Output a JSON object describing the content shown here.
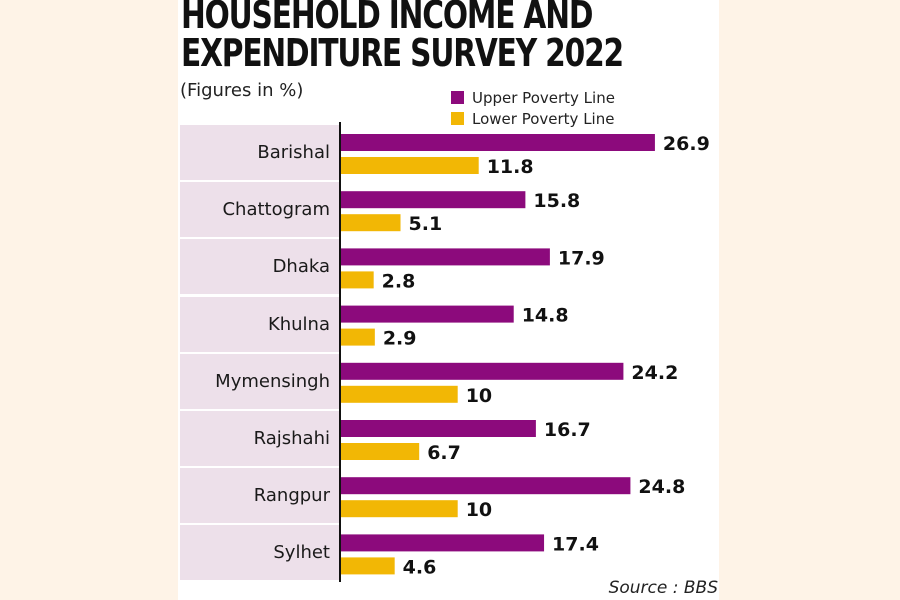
{
  "header": {
    "title_line1": "HOUSEHOLD INCOME AND",
    "title_line2": "EXPENDITURE SURVEY 2022",
    "subtitle": "(Figures in %)"
  },
  "legend": [
    {
      "label": "Upper Poverty Line",
      "color": "#8c0a7c"
    },
    {
      "label": "Lower Poverty Line",
      "color": "#f2b705"
    }
  ],
  "footer": {
    "source": "Source : BBS"
  },
  "chart_data": {
    "type": "bar",
    "orientation": "horizontal",
    "title": "HOUSEHOLD INCOME AND EXPENDITURE SURVEY 2022",
    "subtitle": "(Figures in %)",
    "xlabel": "",
    "ylabel": "",
    "categories": [
      "Barishal",
      "Chattogram",
      "Dhaka",
      "Khulna",
      "Mymensingh",
      "Rajshahi",
      "Rangpur",
      "Sylhet"
    ],
    "series": [
      {
        "name": "Upper Poverty Line",
        "color": "#8c0a7c",
        "values": [
          26.9,
          15.8,
          17.9,
          14.8,
          24.2,
          16.7,
          24.8,
          17.4
        ],
        "labels": [
          "26.9",
          "15.8",
          "17.9",
          "14.8",
          "24.2",
          "16.7",
          "24.8",
          "17.4"
        ]
      },
      {
        "name": "Lower Poverty Line",
        "color": "#f2b705",
        "values": [
          11.8,
          5.1,
          2.8,
          2.9,
          10,
          6.7,
          10,
          4.6
        ],
        "labels": [
          "11.8",
          "5.1",
          "2.8",
          "2.9",
          "10",
          "6.7",
          "10",
          "4.6"
        ]
      }
    ],
    "xlim": [
      0,
      27
    ],
    "grid": false,
    "legend_position": "top-right",
    "source": "Source : BBS"
  }
}
